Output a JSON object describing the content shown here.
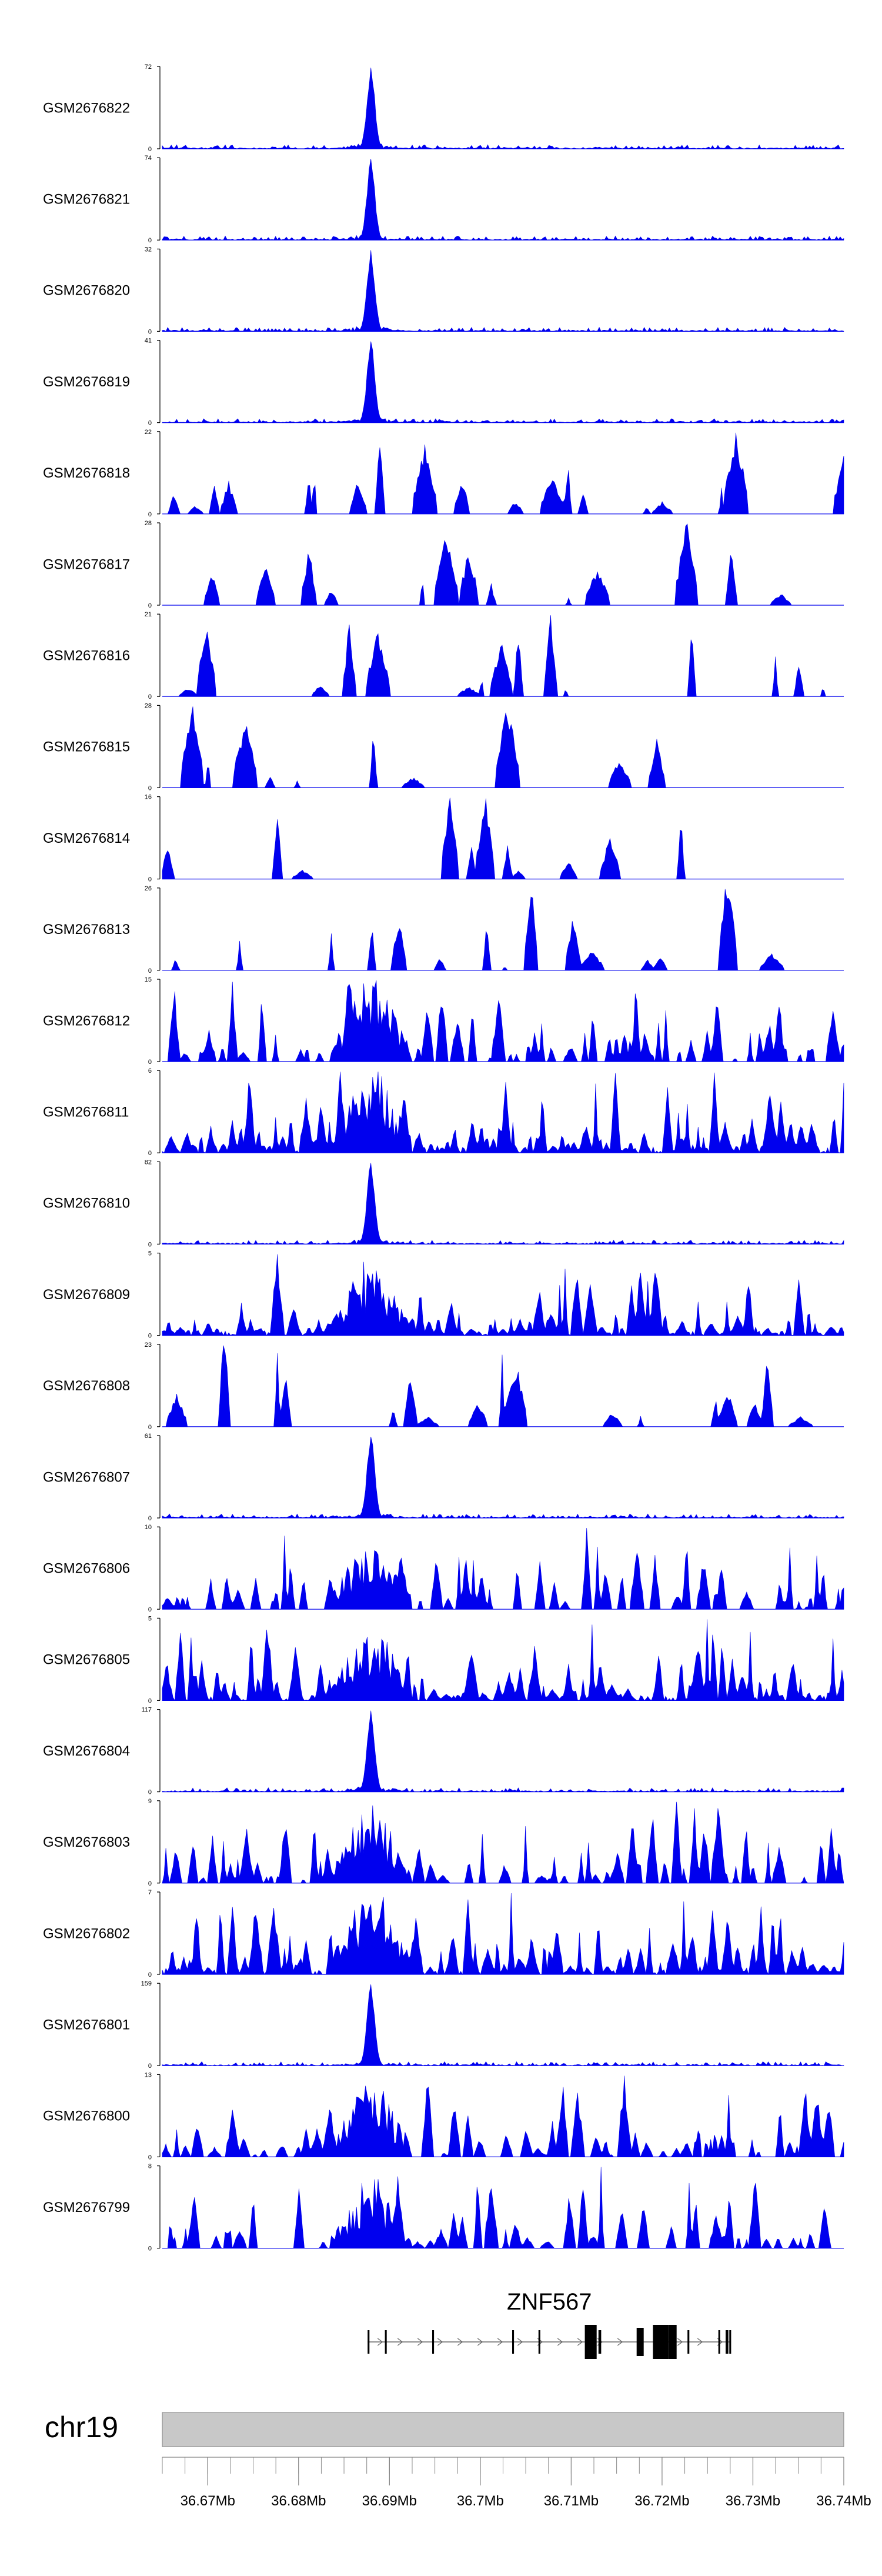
{
  "colors": {
    "signal": "#0000ee",
    "axis": "#000000",
    "ideogram": "#c8c8c8",
    "ideogram_border": "#7f7f7f",
    "gene": "#000000"
  },
  "chart_data": {
    "type": "area",
    "title": "",
    "xlabel": "",
    "ylabel": "",
    "chromosome": "chr19",
    "xlim": [
      36.665,
      36.74
    ],
    "x_ticks": [
      {
        "value": 36.67,
        "label": "36.67Mb"
      },
      {
        "value": 36.68,
        "label": "36.68Mb"
      },
      {
        "value": 36.69,
        "label": "36.69Mb"
      },
      {
        "value": 36.7,
        "label": "36.7Mb"
      },
      {
        "value": 36.71,
        "label": "36.71Mb"
      },
      {
        "value": 36.72,
        "label": "36.72Mb"
      },
      {
        "value": 36.73,
        "label": "36.73Mb"
      },
      {
        "value": 36.74,
        "label": "36.74Mb"
      }
    ],
    "peak_position": 36.6878,
    "tracks": [
      {
        "name": "GSM2676822",
        "ymax": 72,
        "ymax_label": "72",
        "profile": "peak",
        "seed": 1
      },
      {
        "name": "GSM2676821",
        "ymax": 74,
        "ymax_label": "74",
        "profile": "peak",
        "seed": 2
      },
      {
        "name": "GSM2676820",
        "ymax": 32,
        "ymax_label": "32",
        "profile": "peak",
        "seed": 3
      },
      {
        "name": "GSM2676819",
        "ymax": 41,
        "ymax_label": "41",
        "profile": "peak",
        "seed": 4
      },
      {
        "name": "GSM2676818",
        "ymax": 22,
        "ymax_label": "22",
        "profile": "sparse",
        "seed": 5
      },
      {
        "name": "GSM2676817",
        "ymax": 28,
        "ymax_label": "28",
        "profile": "sparse",
        "seed": 6
      },
      {
        "name": "GSM2676816",
        "ymax": 21,
        "ymax_label": "21",
        "profile": "sparse",
        "seed": 7
      },
      {
        "name": "GSM2676815",
        "ymax": 28,
        "ymax_label": "28",
        "profile": "sparse",
        "seed": 8
      },
      {
        "name": "GSM2676814",
        "ymax": 16,
        "ymax_label": "16",
        "profile": "sparse",
        "seed": 9
      },
      {
        "name": "GSM2676813",
        "ymax": 26,
        "ymax_label": "26",
        "profile": "sparse",
        "seed": 10
      },
      {
        "name": "GSM2676812",
        "ymax": 15,
        "ymax_label": "15",
        "profile": "mixed",
        "seed": 11
      },
      {
        "name": "GSM2676811",
        "ymax": 6,
        "ymax_label": "6",
        "profile": "dense",
        "seed": 12
      },
      {
        "name": "GSM2676810",
        "ymax": 82,
        "ymax_label": "82",
        "profile": "peak",
        "seed": 13
      },
      {
        "name": "GSM2676809",
        "ymax": 5,
        "ymax_label": "5",
        "profile": "dense",
        "seed": 14
      },
      {
        "name": "GSM2676808",
        "ymax": 23,
        "ymax_label": "23",
        "profile": "sparse",
        "seed": 15
      },
      {
        "name": "GSM2676807",
        "ymax": 61,
        "ymax_label": "61",
        "profile": "peak",
        "seed": 16
      },
      {
        "name": "GSM2676806",
        "ymax": 10,
        "ymax_label": "10",
        "profile": "mixed",
        "seed": 17
      },
      {
        "name": "GSM2676805",
        "ymax": 5,
        "ymax_label": "5",
        "profile": "dense",
        "seed": 18
      },
      {
        "name": "GSM2676804",
        "ymax": 117,
        "ymax_label": "117",
        "profile": "peak",
        "seed": 19
      },
      {
        "name": "GSM2676803",
        "ymax": 9,
        "ymax_label": "9",
        "profile": "mixed",
        "seed": 20
      },
      {
        "name": "GSM2676802",
        "ymax": 7,
        "ymax_label": "7",
        "profile": "dense",
        "seed": 21
      },
      {
        "name": "GSM2676801",
        "ymax": 159,
        "ymax_label": "159",
        "profile": "peak",
        "seed": 22
      },
      {
        "name": "GSM2676800",
        "ymax": 13,
        "ymax_label": "13",
        "profile": "mixed",
        "seed": 23
      },
      {
        "name": "GSM2676799",
        "ymax": 8,
        "ymax_label": "8",
        "profile": "mixed",
        "seed": 24
      }
    ],
    "gene": {
      "name": "ZNF567",
      "strand": "+",
      "start": 36.6876,
      "end": 36.7276,
      "exons": [
        {
          "start": 36.6876,
          "end": 36.6878,
          "tall": false
        },
        {
          "start": 36.6895,
          "end": 36.6897,
          "tall": false
        },
        {
          "start": 36.6947,
          "end": 36.6949,
          "tall": false
        },
        {
          "start": 36.7035,
          "end": 36.7037,
          "tall": false
        },
        {
          "start": 36.7064,
          "end": 36.7066,
          "tall": false
        },
        {
          "start": 36.7115,
          "end": 36.7128,
          "tall": true
        },
        {
          "start": 36.713,
          "end": 36.7133,
          "tall": false
        },
        {
          "start": 36.719,
          "end": 36.7207,
          "tall": true
        },
        {
          "start": 36.7207,
          "end": 36.7216,
          "tall": true
        },
        {
          "start": 36.7228,
          "end": 36.723,
          "tall": false
        },
        {
          "start": 36.7262,
          "end": 36.7264,
          "tall": false
        },
        {
          "start": 36.727,
          "end": 36.7273,
          "tall": false
        },
        {
          "start": 36.7274,
          "end": 36.7276,
          "tall": false
        }
      ]
    }
  }
}
